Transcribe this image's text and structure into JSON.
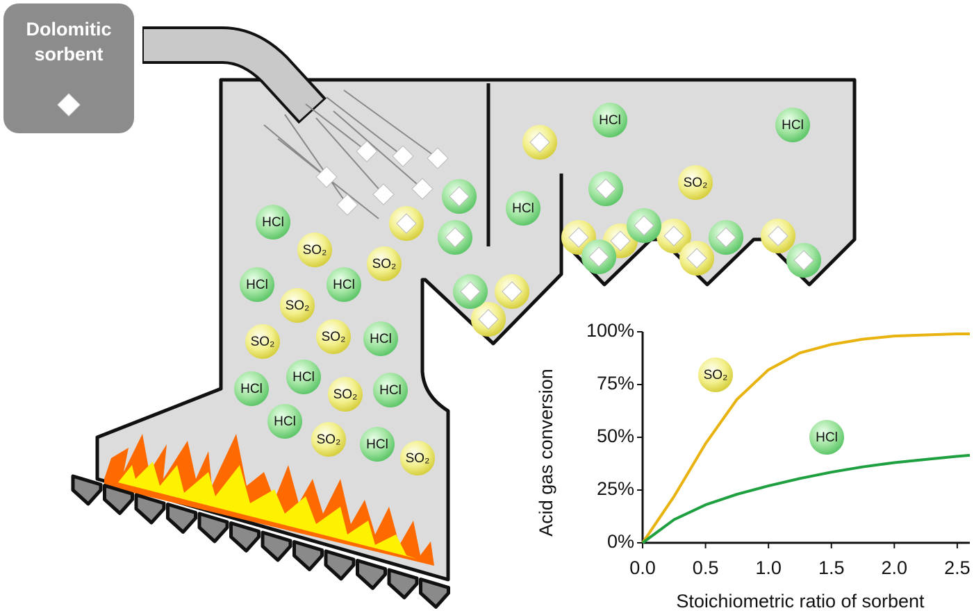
{
  "sorbent_box": {
    "lines": [
      "Dolomitic",
      "sorbent"
    ]
  },
  "particle_labels": [
    "HCl",
    "SO₂",
    "SO₂",
    "HCl",
    "HCl",
    "SO₂",
    "SO₂",
    "SO₂",
    "HCl",
    "HCl",
    "HCl",
    "SO₂",
    "HCl",
    "HCl",
    "SO₂",
    "HCl",
    "SO₂",
    "HCl",
    "HCl",
    "HCl",
    "SO₂"
  ],
  "chart_data": {
    "type": "line",
    "x_label": "Stoichiometric ratio of sorbent",
    "y_label": "Acid gas conversion",
    "x": [
      0,
      0.25,
      0.5,
      0.75,
      1.0,
      1.25,
      1.5,
      1.75,
      2.0,
      2.25,
      2.5,
      2.6
    ],
    "series": [
      {
        "name": "SO₂",
        "color": "#e8b20f",
        "values": [
          0,
          22,
          47,
          68,
          82,
          90,
          94,
          96.5,
          98,
          98.5,
          99,
          99
        ]
      },
      {
        "name": "HCl",
        "color": "#1fa040",
        "values": [
          0,
          11,
          18,
          23,
          27,
          30.5,
          33.5,
          36,
          38,
          39.5,
          41,
          41.5
        ]
      }
    ],
    "xlim": [
      0,
      2.6
    ],
    "ylim": [
      0,
      100
    ],
    "xticks": [
      {
        "value": 0,
        "label": "0.0"
      },
      {
        "value": 0.5,
        "label": "0.5"
      },
      {
        "value": 1,
        "label": "1.0"
      },
      {
        "value": 1.5,
        "label": "1.5"
      },
      {
        "value": 2,
        "label": "2.0"
      },
      {
        "value": 2.5,
        "label": "2.5"
      }
    ],
    "yticks": [
      {
        "value": 0,
        "label": "0%"
      },
      {
        "value": 25,
        "label": "25%"
      },
      {
        "value": 50,
        "label": "50%"
      },
      {
        "value": 75,
        "label": "75%"
      },
      {
        "value": 100,
        "label": "100%"
      }
    ]
  }
}
